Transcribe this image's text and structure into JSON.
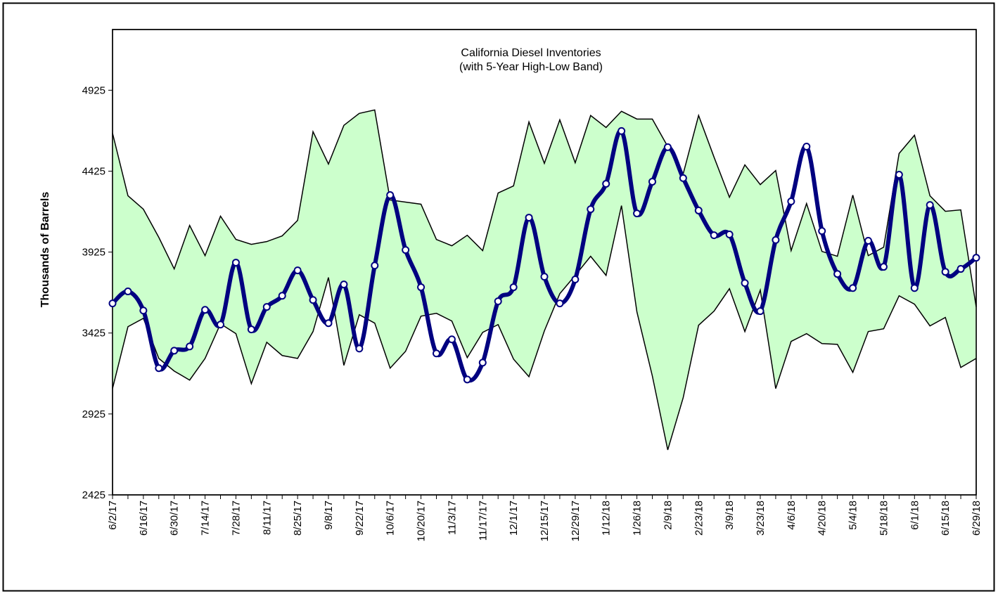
{
  "chart_data": {
    "type": "line",
    "title": "California Diesel Inventories",
    "subtitle": "(with 5-Year High-Low Band)",
    "y_label": "Thousands of Barrels",
    "categories": [
      "6/2/17",
      null,
      "6/16/17",
      null,
      "6/30/17",
      null,
      "7/14/17",
      null,
      "7/28/17",
      null,
      "8/11/17",
      null,
      "8/25/17",
      null,
      "9/8/17",
      null,
      "9/22/17",
      null,
      "10/6/17",
      null,
      "10/20/17",
      null,
      "11/3/17",
      null,
      "11/17/17",
      null,
      "12/1/17",
      null,
      "12/15/17",
      null,
      "12/29/17",
      null,
      "1/12/18",
      null,
      "1/26/18",
      null,
      "2/9/18",
      null,
      "2/23/18",
      null,
      "3/9/18",
      null,
      "3/23/18",
      null,
      "4/6/18",
      null,
      "4/20/18",
      null,
      "5/4/18",
      null,
      "5/18/18",
      null,
      "6/1/18",
      null,
      "6/15/18",
      null,
      "6/29/18"
    ],
    "series": [
      {
        "color": "#000080",
        "smooth": true,
        "marker_fill": "#ffffff",
        "values": [
          3608,
          3682,
          3564,
          3208,
          3316,
          3342,
          3568,
          3477,
          3860,
          3447,
          3586,
          3655,
          3812,
          3629,
          3486,
          3725,
          3329,
          3842,
          4277,
          3938,
          3708,
          3299,
          3386,
          3138,
          3242,
          3621,
          3708,
          4138,
          3773,
          3608,
          3756,
          4190,
          4347,
          4673,
          4164,
          4360,
          4573,
          4382,
          4182,
          4029,
          4034,
          3734,
          3560,
          4000,
          4238,
          4577,
          4055,
          3790,
          3703,
          3995,
          3834,
          4403,
          3703,
          4216,
          3803,
          3821,
          3890
        ]
      }
    ],
    "band": {
      "fill": "#ccffcc",
      "line_color": "#000000",
      "high": [
        4660,
        4273,
        4190,
        4016,
        3821,
        4090,
        3903,
        4147,
        4003,
        3973,
        3990,
        4025,
        4121,
        4669,
        4469,
        4708,
        4782,
        4803,
        4247,
        4234,
        4221,
        4003,
        3964,
        4029,
        3934,
        4290,
        4334,
        4729,
        4473,
        4742,
        4477,
        4769,
        4695,
        4795,
        4747,
        4747,
        4577,
        4408,
        4769,
        4512,
        4264,
        4464,
        4342,
        4429,
        3934,
        4225,
        3929,
        3899,
        4277,
        3903,
        3955,
        4534,
        4647,
        4273,
        4177,
        4186,
        3586
      ],
      "low": [
        3082,
        3464,
        3516,
        3268,
        3190,
        3134,
        3268,
        3482,
        3421,
        3112,
        3368,
        3286,
        3268,
        3434,
        3768,
        3225,
        3538,
        3486,
        3208,
        3312,
        3529,
        3547,
        3499,
        3273,
        3429,
        3477,
        3264,
        3155,
        3438,
        3668,
        3781,
        3899,
        3781,
        4212,
        3556,
        3160,
        2703,
        3025,
        3473,
        3560,
        3699,
        3434,
        3690,
        3082,
        3373,
        3421,
        3360,
        3355,
        3182,
        3434,
        3451,
        3655,
        3603,
        3469,
        3521,
        3212,
        3268
      ]
    },
    "ylim": [
      2425,
      5300
    ],
    "yticks": [
      2425,
      2925,
      3425,
      3925,
      4425,
      4925
    ],
    "grid": false
  }
}
